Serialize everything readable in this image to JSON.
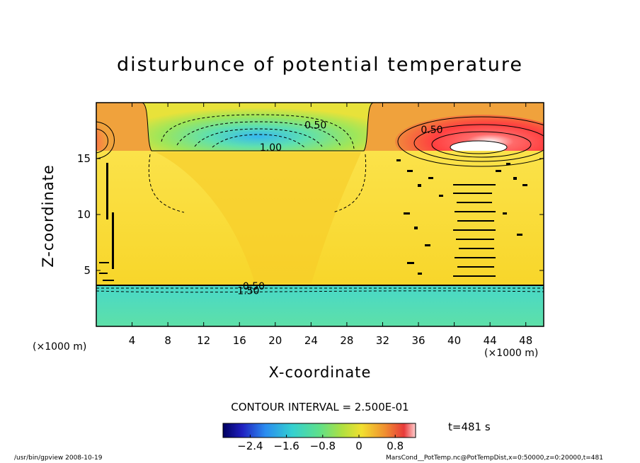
{
  "chart_data": {
    "type": "heatmap",
    "title": "disturbunce of potential temperature",
    "xlabel": "X-coordinate",
    "ylabel": "Z-coordinate",
    "x_unit": "(×1000 m)",
    "z_unit": "(×1000 m)",
    "xlim": [
      0,
      50
    ],
    "ylim": [
      0,
      20
    ],
    "x_ticks": [
      4,
      8,
      12,
      16,
      20,
      24,
      28,
      32,
      36,
      40,
      44,
      48
    ],
    "y_ticks": [
      5,
      10,
      15
    ],
    "contour_labels": [
      {
        "text": "0.50",
        "x": 24.5,
        "z": 18.0
      },
      {
        "text": "1.00",
        "x": 19.5,
        "z": 16.0
      },
      {
        "text": "0.50",
        "x": 37.5,
        "z": 17.6
      },
      {
        "text": "0.50",
        "x": 17.6,
        "z": 3.6
      },
      {
        "text": "1.50",
        "x": 17.0,
        "z": 3.2
      }
    ],
    "contour_interval_text": "CONTOUR INTERVAL = 2.500E-01",
    "colorbar": {
      "ticks": [
        "−2.4",
        "−1.6",
        "−0.8",
        "0",
        "0.8"
      ],
      "tick_values": [
        -2.4,
        -1.6,
        -0.8,
        0,
        0.8
      ],
      "range": [
        -3.0,
        1.25
      ]
    },
    "time_label": "t=481 s",
    "colors": {
      "upper_ambient": "#f0a23c",
      "middle_layer": "#fadc2e",
      "lower_layer": "#52dcb4",
      "cold_anomaly": "#34c2f4",
      "warm_anomaly": "#ff4a4a"
    }
  },
  "footer": {
    "left": "/usr/bin/gpview   2008-10-19",
    "right": "MarsCond__PotTemp.nc@PotTempDist,x=0:50000,z=0:20000,t=481"
  }
}
